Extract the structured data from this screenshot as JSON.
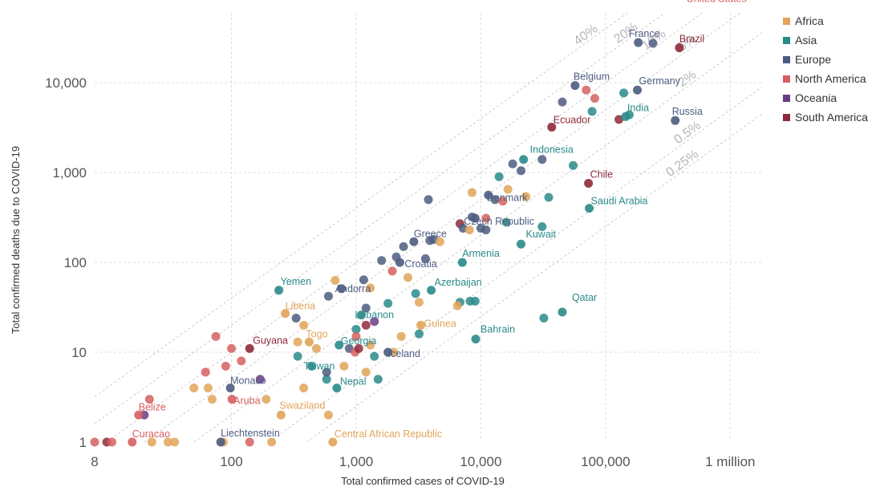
{
  "chart_data": {
    "type": "scatter",
    "xlabel": "Total confirmed cases of COVID-19",
    "ylabel": "Total confirmed deaths due to COVID-19",
    "x_scale": "log",
    "y_scale": "log",
    "xlim": [
      8,
      1800000
    ],
    "ylim": [
      1,
      60000
    ],
    "x_ticks": [
      {
        "value": 8,
        "label": "8"
      },
      {
        "value": 100,
        "label": "100"
      },
      {
        "value": 1000,
        "label": "1,000"
      },
      {
        "value": 10000,
        "label": "10,000"
      },
      {
        "value": 100000,
        "label": "100,000"
      },
      {
        "value": 1000000,
        "label": "1 million"
      }
    ],
    "y_ticks": [
      {
        "value": 1,
        "label": "1"
      },
      {
        "value": 10,
        "label": "10"
      },
      {
        "value": 100,
        "label": "100"
      },
      {
        "value": 1000,
        "label": "1,000"
      },
      {
        "value": 10000,
        "label": "10,000"
      }
    ],
    "grid": true,
    "legend_position": "right",
    "legend": [
      {
        "name": "Africa",
        "color": "#e0a458"
      },
      {
        "name": "Asia",
        "color": "#2a8a8a"
      },
      {
        "name": "Europe",
        "color": "#4c5c80"
      },
      {
        "name": "North America",
        "color": "#d6605f"
      },
      {
        "name": "Oceania",
        "color": "#6a3d82"
      },
      {
        "name": "South America",
        "color": "#8f2a3a"
      }
    ],
    "cfr_lines": [
      {
        "rate": 0.4,
        "label": "40%"
      },
      {
        "rate": 0.2,
        "label": "20%"
      },
      {
        "rate": 0.1,
        "label": "10%"
      },
      {
        "rate": 0.05,
        "label": "5%"
      },
      {
        "rate": 0.02,
        "label": "2%"
      },
      {
        "rate": 0.005,
        "label": "0.5%"
      },
      {
        "rate": 0.0025,
        "label": "0.25%"
      }
    ],
    "labeled_points": [
      {
        "name": "United States",
        "region": "North America",
        "x": 1640000,
        "y": 97000
      },
      {
        "name": "France",
        "region": "Europe",
        "x": 183000,
        "y": 28000
      },
      {
        "name": "Brazil",
        "region": "South America",
        "x": 391000,
        "y": 24500
      },
      {
        "name": "Belgium",
        "region": "Europe",
        "x": 57000,
        "y": 9300
      },
      {
        "name": "Germany",
        "region": "Europe",
        "x": 180000,
        "y": 8300
      },
      {
        "name": "India",
        "region": "Asia",
        "x": 145000,
        "y": 4200
      },
      {
        "name": "Russia",
        "region": "Europe",
        "x": 362000,
        "y": 3800
      },
      {
        "name": "Ecuador",
        "region": "South America",
        "x": 37000,
        "y": 3200
      },
      {
        "name": "Indonesia",
        "region": "Asia",
        "x": 22000,
        "y": 1400
      },
      {
        "name": "Chile",
        "region": "South America",
        "x": 73000,
        "y": 760
      },
      {
        "name": "Denmark",
        "region": "Europe",
        "x": 11500,
        "y": 560
      },
      {
        "name": "Saudi Arabia",
        "region": "Asia",
        "x": 74000,
        "y": 400
      },
      {
        "name": "Czech Republic",
        "region": "Europe",
        "x": 9000,
        "y": 310
      },
      {
        "name": "Kuwait",
        "region": "Asia",
        "x": 21000,
        "y": 160
      },
      {
        "name": "Greece",
        "region": "Europe",
        "x": 2900,
        "y": 170
      },
      {
        "name": "Croatia",
        "region": "Europe",
        "x": 2240,
        "y": 100
      },
      {
        "name": "Armenia",
        "region": "Asia",
        "x": 7100,
        "y": 100
      },
      {
        "name": "Yemen",
        "region": "Asia",
        "x": 240,
        "y": 49
      },
      {
        "name": "Andorra",
        "region": "Europe",
        "x": 763,
        "y": 51
      },
      {
        "name": "Azerbaijan",
        "region": "Asia",
        "x": 4000,
        "y": 49
      },
      {
        "name": "Liberia",
        "region": "Africa",
        "x": 270,
        "y": 27
      },
      {
        "name": "Lebanon",
        "region": "Asia",
        "x": 1100,
        "y": 26
      },
      {
        "name": "Qatar",
        "region": "Asia",
        "x": 45000,
        "y": 28
      },
      {
        "name": "Guinea",
        "region": "Africa",
        "x": 3300,
        "y": 20
      },
      {
        "name": "Togo",
        "region": "Africa",
        "x": 420,
        "y": 13
      },
      {
        "name": "Bahrain",
        "region": "Asia",
        "x": 9100,
        "y": 14
      },
      {
        "name": "Georgia",
        "region": "Asia",
        "x": 730,
        "y": 12
      },
      {
        "name": "Guyana",
        "region": "South America",
        "x": 140,
        "y": 11
      },
      {
        "name": "Iceland",
        "region": "Europe",
        "x": 1800,
        "y": 10
      },
      {
        "name": "Taiwan",
        "region": "Asia",
        "x": 440,
        "y": 7
      },
      {
        "name": "Monaco",
        "region": "Europe",
        "x": 98,
        "y": 4
      },
      {
        "name": "Nepal",
        "region": "Asia",
        "x": 700,
        "y": 4
      },
      {
        "name": "Aruba",
        "region": "North America",
        "x": 101,
        "y": 3
      },
      {
        "name": "Belize",
        "region": "North America",
        "x": 18,
        "y": 2
      },
      {
        "name": "Swaziland",
        "region": "Africa",
        "x": 250,
        "y": 2
      },
      {
        "name": "Curacao",
        "region": "North America",
        "x": 16,
        "y": 1
      },
      {
        "name": "Liechtenstein",
        "region": "Europe",
        "x": 82,
        "y": 1
      },
      {
        "name": "Central African Republic",
        "region": "Africa",
        "x": 650,
        "y": 1
      }
    ],
    "unlabeled_points": [
      {
        "region": "North America",
        "x": 8,
        "y": 1
      },
      {
        "region": "South America",
        "x": 10,
        "y": 1
      },
      {
        "region": "North America",
        "x": 11,
        "y": 1
      },
      {
        "region": "Africa",
        "x": 23,
        "y": 1
      },
      {
        "region": "Africa",
        "x": 31,
        "y": 1
      },
      {
        "region": "Africa",
        "x": 35,
        "y": 1
      },
      {
        "region": "Africa",
        "x": 86,
        "y": 1
      },
      {
        "region": "North America",
        "x": 140,
        "y": 1
      },
      {
        "region": "Africa",
        "x": 210,
        "y": 1
      },
      {
        "region": "North America",
        "x": 22,
        "y": 3
      },
      {
        "region": "Oceania",
        "x": 20,
        "y": 2
      },
      {
        "region": "Africa",
        "x": 50,
        "y": 4
      },
      {
        "region": "Africa",
        "x": 65,
        "y": 4
      },
      {
        "region": "Africa",
        "x": 70,
        "y": 3
      },
      {
        "region": "North America",
        "x": 62,
        "y": 6
      },
      {
        "region": "North America",
        "x": 75,
        "y": 15
      },
      {
        "region": "North America",
        "x": 90,
        "y": 7
      },
      {
        "region": "North America",
        "x": 100,
        "y": 11
      },
      {
        "region": "North America",
        "x": 120,
        "y": 8
      },
      {
        "region": "Oceania",
        "x": 170,
        "y": 5
      },
      {
        "region": "Africa",
        "x": 190,
        "y": 3
      },
      {
        "region": "Africa",
        "x": 380,
        "y": 4
      },
      {
        "region": "Africa",
        "x": 600,
        "y": 2
      },
      {
        "region": "Europe",
        "x": 330,
        "y": 24
      },
      {
        "region": "Africa",
        "x": 380,
        "y": 20
      },
      {
        "region": "Africa",
        "x": 340,
        "y": 13
      },
      {
        "region": "Africa",
        "x": 480,
        "y": 11
      },
      {
        "region": "Asia",
        "x": 340,
        "y": 9
      },
      {
        "region": "Asia",
        "x": 580,
        "y": 5
      },
      {
        "region": "Europe",
        "x": 580,
        "y": 6
      },
      {
        "region": "Africa",
        "x": 800,
        "y": 7
      },
      {
        "region": "Africa",
        "x": 1200,
        "y": 6
      },
      {
        "region": "Asia",
        "x": 1500,
        "y": 5
      },
      {
        "region": "Asia",
        "x": 1000,
        "y": 18
      },
      {
        "region": "Europe",
        "x": 1200,
        "y": 31
      },
      {
        "region": "North America",
        "x": 1000,
        "y": 15
      },
      {
        "region": "Oceania",
        "x": 1400,
        "y": 22
      },
      {
        "region": "South America",
        "x": 1200,
        "y": 20
      },
      {
        "region": "Europe",
        "x": 880,
        "y": 11
      },
      {
        "region": "North America",
        "x": 980,
        "y": 10
      },
      {
        "region": "South America",
        "x": 1050,
        "y": 11
      },
      {
        "region": "Africa",
        "x": 1300,
        "y": 12
      },
      {
        "region": "Asia",
        "x": 1400,
        "y": 9
      },
      {
        "region": "Africa",
        "x": 2300,
        "y": 15
      },
      {
        "region": "Africa",
        "x": 2000,
        "y": 10
      },
      {
        "region": "Asia",
        "x": 3200,
        "y": 16
      },
      {
        "region": "Europe",
        "x": 600,
        "y": 42
      },
      {
        "region": "Africa",
        "x": 680,
        "y": 63
      },
      {
        "region": "Europe",
        "x": 1150,
        "y": 64
      },
      {
        "region": "Africa",
        "x": 1300,
        "y": 52
      },
      {
        "region": "Asia",
        "x": 1800,
        "y": 35
      },
      {
        "region": "Africa",
        "x": 2600,
        "y": 68
      },
      {
        "region": "Africa",
        "x": 3200,
        "y": 36
      },
      {
        "region": "Asia",
        "x": 3000,
        "y": 45
      },
      {
        "region": "North America",
        "x": 1950,
        "y": 80
      },
      {
        "region": "Europe",
        "x": 1600,
        "y": 105
      },
      {
        "region": "Europe",
        "x": 2100,
        "y": 115
      },
      {
        "region": "Europe",
        "x": 2400,
        "y": 150
      },
      {
        "region": "Europe",
        "x": 3600,
        "y": 110
      },
      {
        "region": "Europe",
        "x": 3900,
        "y": 175
      },
      {
        "region": "Europe",
        "x": 4200,
        "y": 180
      },
      {
        "region": "Africa",
        "x": 4700,
        "y": 170
      },
      {
        "region": "Europe",
        "x": 3800,
        "y": 500
      },
      {
        "region": "South America",
        "x": 6800,
        "y": 270
      },
      {
        "region": "Europe",
        "x": 7200,
        "y": 240
      },
      {
        "region": "Africa",
        "x": 8100,
        "y": 230
      },
      {
        "region": "Europe",
        "x": 8500,
        "y": 320
      },
      {
        "region": "Asia",
        "x": 6800,
        "y": 36
      },
      {
        "region": "Asia",
        "x": 8200,
        "y": 37
      },
      {
        "region": "Africa",
        "x": 6500,
        "y": 33
      },
      {
        "region": "Asia",
        "x": 9000,
        "y": 37
      },
      {
        "region": "Africa",
        "x": 8500,
        "y": 600
      },
      {
        "region": "Europe",
        "x": 10000,
        "y": 240
      },
      {
        "region": "Europe",
        "x": 11000,
        "y": 230
      },
      {
        "region": "North America",
        "x": 11000,
        "y": 310
      },
      {
        "region": "Europe",
        "x": 13000,
        "y": 500
      },
      {
        "region": "Asia",
        "x": 14000,
        "y": 900
      },
      {
        "region": "Africa",
        "x": 16500,
        "y": 650
      },
      {
        "region": "Asia",
        "x": 16000,
        "y": 280
      },
      {
        "region": "North America",
        "x": 15000,
        "y": 480
      },
      {
        "region": "Europe",
        "x": 18000,
        "y": 1250
      },
      {
        "region": "Europe",
        "x": 21000,
        "y": 1050
      },
      {
        "region": "Africa",
        "x": 23000,
        "y": 540
      },
      {
        "region": "Asia",
        "x": 31000,
        "y": 250
      },
      {
        "region": "Asia",
        "x": 32000,
        "y": 24
      },
      {
        "region": "Europe",
        "x": 31000,
        "y": 1400
      },
      {
        "region": "Asia",
        "x": 35000,
        "y": 530
      },
      {
        "region": "Europe",
        "x": 45000,
        "y": 6100
      },
      {
        "region": "Asia",
        "x": 55000,
        "y": 1200
      },
      {
        "region": "North America",
        "x": 70000,
        "y": 8300
      },
      {
        "region": "Asia",
        "x": 78000,
        "y": 4800
      },
      {
        "region": "North America",
        "x": 82000,
        "y": 6700
      },
      {
        "region": "South America",
        "x": 128000,
        "y": 3900
      },
      {
        "region": "Asia",
        "x": 140000,
        "y": 7700
      },
      {
        "region": "Asia",
        "x": 155000,
        "y": 4400
      },
      {
        "region": "Europe",
        "x": 240000,
        "y": 27500
      }
    ]
  }
}
